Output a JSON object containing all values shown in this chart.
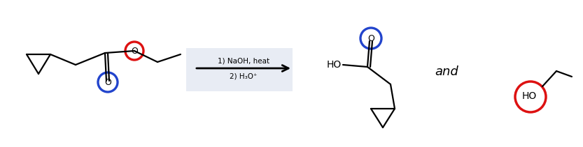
{
  "bg_color": "#ffffff",
  "arrow_box_color": "#e8ecf4",
  "arrow_line_color": "#000000",
  "mol_line_color": "#000000",
  "blue_circle_color": "#2244cc",
  "red_circle_color": "#dd1111",
  "text_color": "#000000",
  "reaction_label_1": "1) NaOH, heat",
  "reaction_label_2": "2) H₃O⁺",
  "and_text": "and",
  "figsize": [
    8.33,
    2.11
  ],
  "dpi": 100
}
